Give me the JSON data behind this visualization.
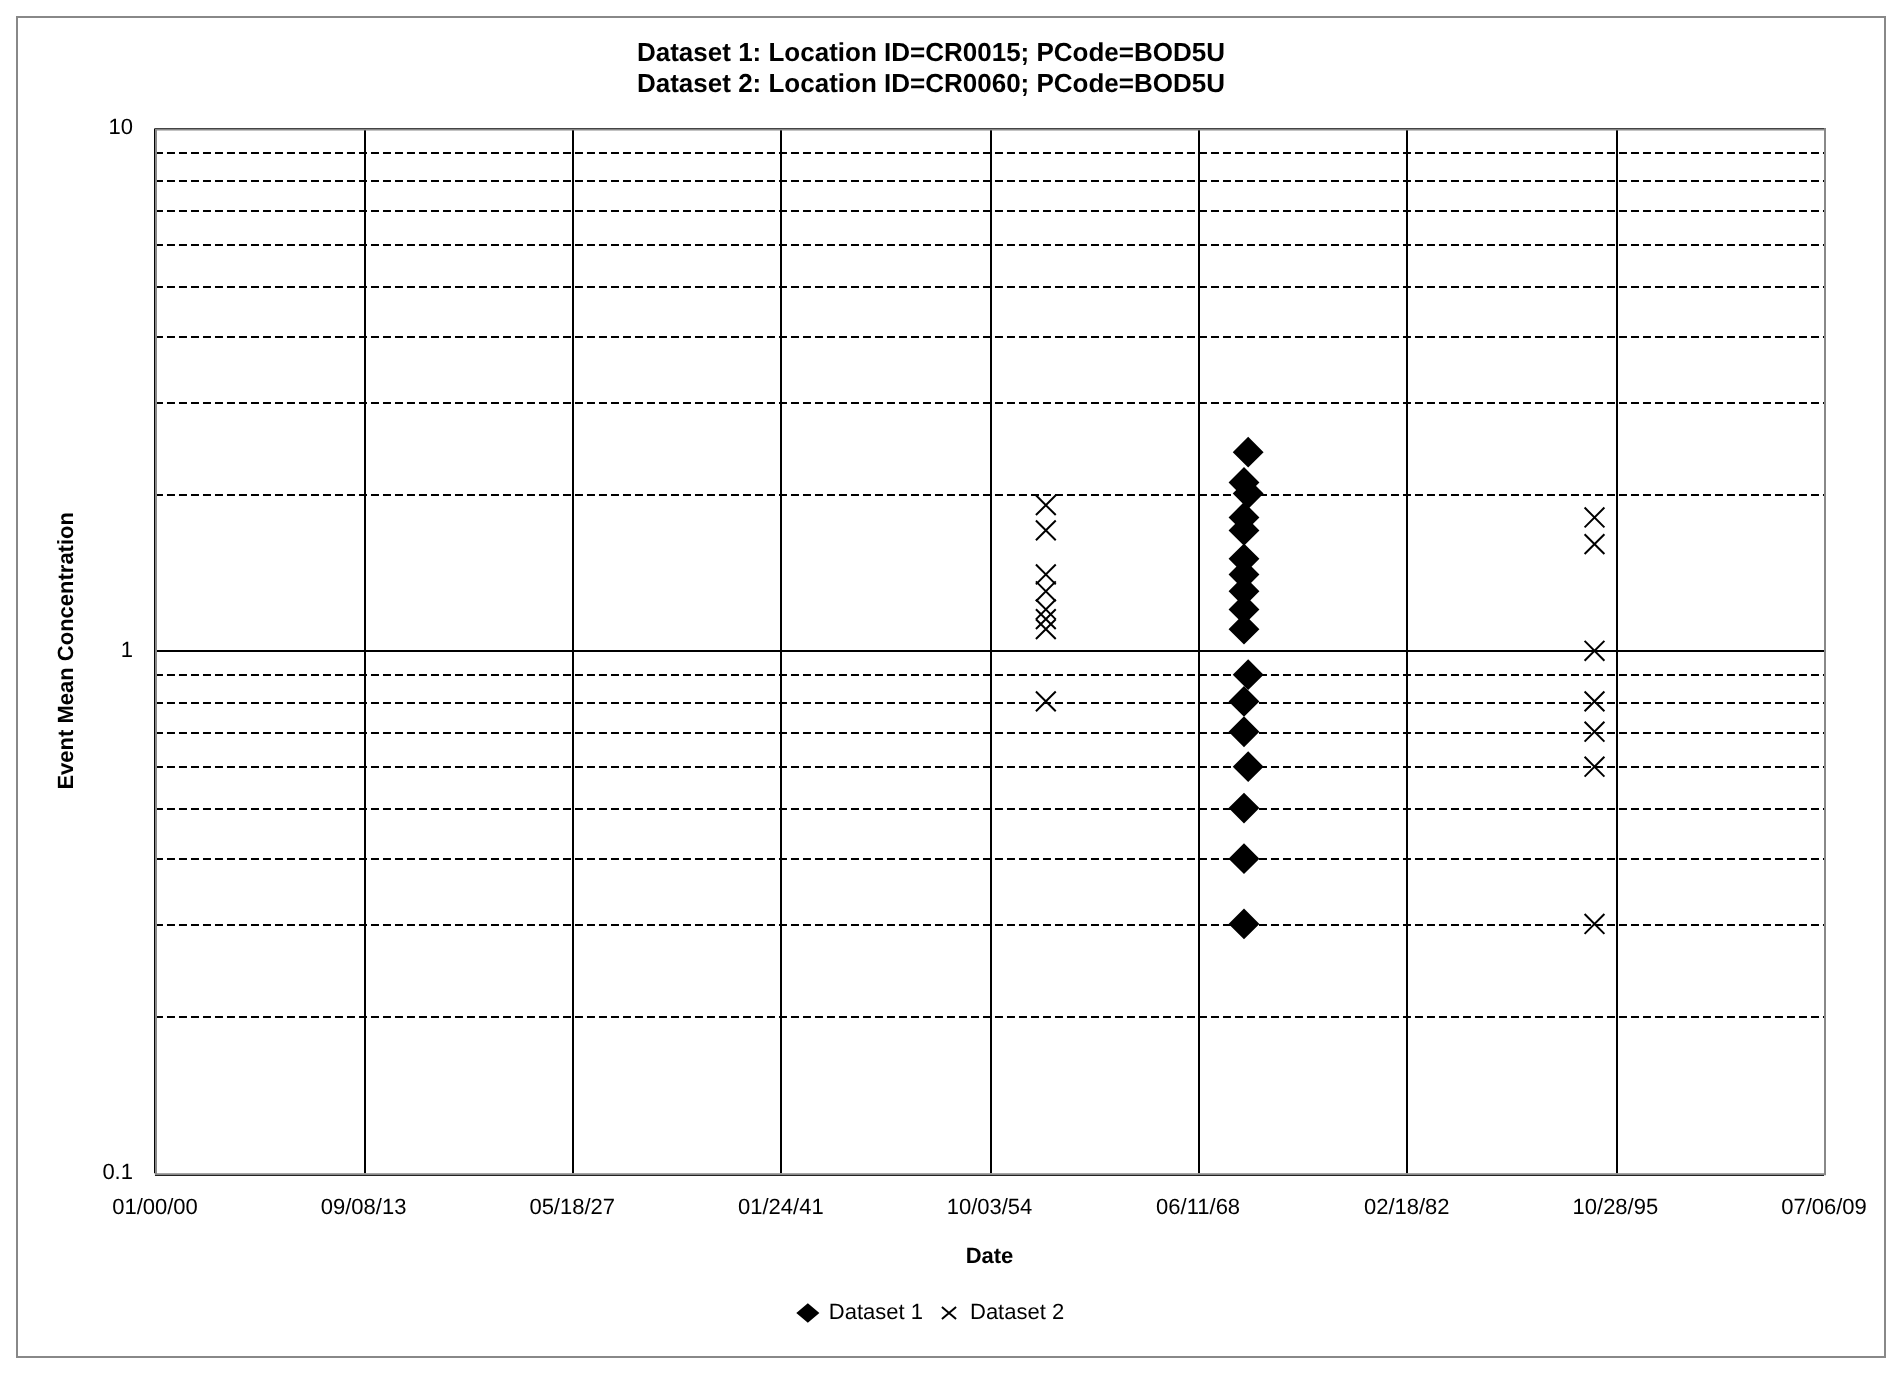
{
  "chart_data": {
    "type": "scatter",
    "title": "Dataset 1: Location ID=CR0015; PCode=BOD5U\nDataset 2: Location ID=CR0060; PCode=BOD5U",
    "xlabel": "Date",
    "ylabel": "Event Mean Concentration",
    "log": "y",
    "grid": true,
    "legend": "bottom",
    "xlim": [
      "1899-12-31",
      "2009-07-06"
    ],
    "xticks": [
      {
        "value": "1899-12-31",
        "label": "01/00/00"
      },
      {
        "value": "1913-09-08",
        "label": "09/08/13"
      },
      {
        "value": "1927-05-18",
        "label": "05/18/27"
      },
      {
        "value": "1941-01-24",
        "label": "01/24/41"
      },
      {
        "value": "1954-10-03",
        "label": "10/03/54"
      },
      {
        "value": "1968-06-11",
        "label": "06/11/68"
      },
      {
        "value": "1982-02-18",
        "label": "02/18/82"
      },
      {
        "value": "1995-10-28",
        "label": "10/28/95"
      },
      {
        "value": "2009-07-06",
        "label": "07/06/09"
      }
    ],
    "ylim": [
      0.1,
      10
    ],
    "yticks": [
      0.1,
      {
        "value": 0.2,
        "label": null
      },
      {
        "value": 0.3,
        "label": null
      },
      {
        "value": 0.4,
        "label": null
      },
      {
        "value": 0.5,
        "label": null
      },
      {
        "value": 0.6,
        "label": null
      },
      {
        "value": 0.7,
        "label": null
      },
      {
        "value": 0.8,
        "label": null
      },
      {
        "value": 0.9,
        "label": null
      },
      1,
      {
        "value": 2,
        "label": null
      },
      {
        "value": 3,
        "label": null
      },
      {
        "value": 4,
        "label": null
      },
      {
        "value": 5,
        "label": null
      },
      {
        "value": 6,
        "label": null
      },
      {
        "value": 7,
        "label": null
      },
      {
        "value": 8,
        "label": null
      },
      {
        "value": 9,
        "label": null
      },
      10
    ],
    "series": [
      {
        "name": "Dataset 1",
        "color": "#000000",
        "marker": "diamond",
        "x": [
          "1971-09-24",
          "1971-06-16",
          "1971-09-24",
          "1971-06-16",
          "1971-06-16",
          "1971-06-16",
          "1971-06-16",
          "1971-06-16",
          "1971-06-16",
          "1971-06-16",
          "1971-09-24",
          "1971-06-16",
          "1971-06-16",
          "1971-09-24",
          "1971-06-16",
          "1971-06-16",
          "1971-06-16"
        ],
        "values": [
          2.4,
          2.1,
          2.0,
          1.8,
          1.7,
          1.5,
          1.4,
          1.3,
          1.2,
          1.1,
          0.9,
          0.8,
          0.7,
          0.6,
          0.5,
          0.4,
          0.3
        ]
      },
      {
        "name": "Dataset 2",
        "color": "#000000",
        "marker": "cross",
        "x": [
          "1958-06-15",
          "1958-06-15",
          "1958-06-15",
          "1958-06-15",
          "1958-06-15",
          "1958-06-15",
          "1958-06-15",
          "1958-06-15",
          "1994-06-15",
          "1994-06-15",
          "1994-06-15",
          "1994-06-15",
          "1994-06-15",
          "1994-06-15",
          "1994-06-15"
        ],
        "values": [
          1.9,
          1.7,
          1.4,
          1.3,
          1.2,
          1.15,
          1.1,
          0.8,
          1.8,
          1.6,
          1.0,
          0.8,
          0.7,
          0.6,
          0.3
        ]
      }
    ]
  }
}
